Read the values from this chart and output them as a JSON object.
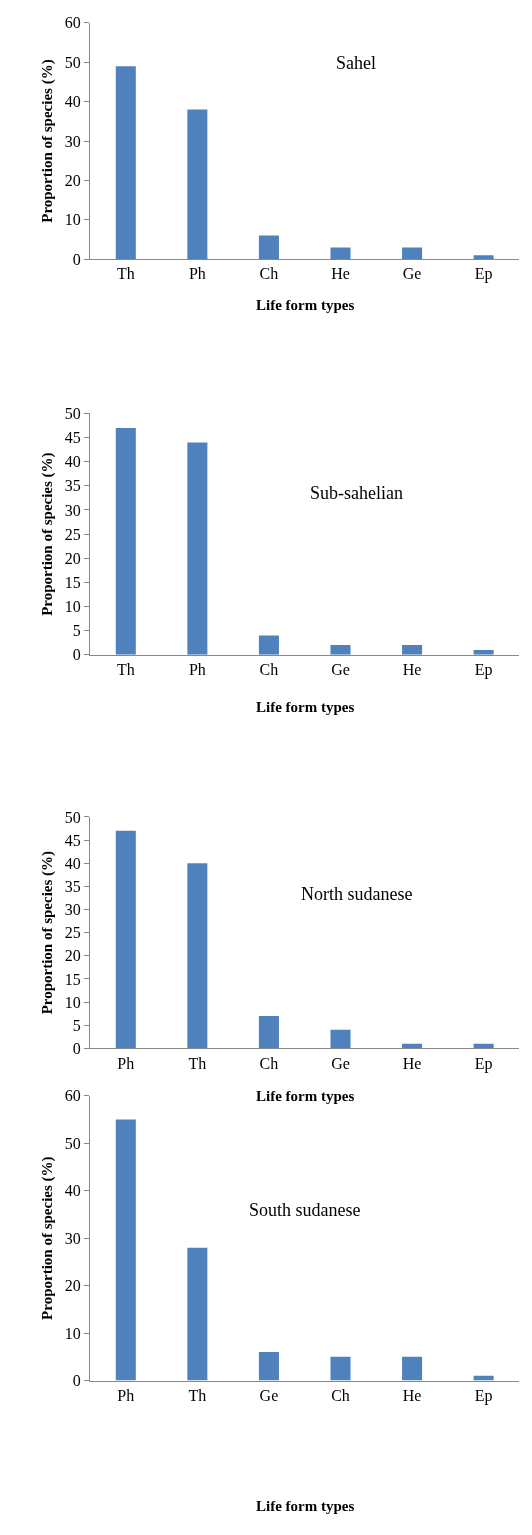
{
  "chart_data": [
    {
      "type": "bar",
      "categories": [
        "Th",
        "Ph",
        "Ch",
        "He",
        "Ge",
        "Ep"
      ],
      "values": [
        49,
        38,
        6,
        3,
        3,
        1
      ],
      "color": "#4f81bd",
      "ylim": [
        0,
        60
      ],
      "yticks": [
        0,
        10,
        20,
        30,
        40,
        50,
        60
      ],
      "xlabel": "Life form types",
      "ylabel": "Proportion of species (%)",
      "annotations": [
        "Sahel"
      ]
    },
    {
      "type": "bar",
      "categories": [
        "Th",
        "Ph",
        "Ch",
        "Ge",
        "He",
        "Ep"
      ],
      "values": [
        47,
        44,
        4,
        2,
        2,
        1
      ],
      "color": "#4f81bd",
      "ylim": [
        0,
        50
      ],
      "yticks": [
        0,
        5,
        10,
        15,
        20,
        25,
        30,
        35,
        40,
        45,
        50
      ],
      "xlabel": "Life form types",
      "ylabel": "Proportion of species (%)",
      "annotations": [
        "Sub-sahelian"
      ]
    },
    {
      "type": "bar",
      "categories": [
        "Ph",
        "Th",
        "Ch",
        "Ge",
        "He",
        "Ep"
      ],
      "values": [
        47,
        40,
        7,
        4,
        1,
        1
      ],
      "color": "#4f81bd",
      "ylim": [
        0,
        50
      ],
      "yticks": [
        0,
        5,
        10,
        15,
        20,
        25,
        30,
        35,
        40,
        45,
        50
      ],
      "xlabel": "Life form types",
      "ylabel": "Proportion of species (%)",
      "annotations": [
        "North sudanese"
      ]
    },
    {
      "type": "bar",
      "categories": [
        "Ph",
        "Th",
        "Ge",
        "Ch",
        "He",
        "Ep"
      ],
      "values": [
        55,
        28,
        6,
        5,
        5,
        1
      ],
      "color": "#4f81bd",
      "ylim": [
        0,
        60
      ],
      "yticks": [
        0,
        10,
        20,
        30,
        40,
        50,
        60
      ],
      "xlabel": "Life form types",
      "ylabel": "Proportion of species (%)",
      "annotations": [
        "South sudanese"
      ]
    }
  ]
}
